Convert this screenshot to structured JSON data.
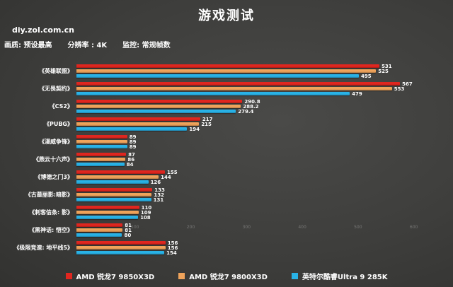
{
  "page": {
    "title": "游戏测试",
    "watermark": "diy.zol.com.cn",
    "settings": [
      "画质: 预设最高",
      "分辨率 : 4K",
      "监控: 常规帧数"
    ]
  },
  "colors": {
    "red": "#e0261f",
    "orange": "#efa35b",
    "blue": "#29b2e6",
    "background": "#3f3f3d",
    "text": "#ffffff"
  },
  "chart_data": {
    "type": "bar",
    "orientation": "horizontal",
    "title": "游戏测试",
    "xlabel": "",
    "ylabel": "",
    "xlim": [
      0,
      650
    ],
    "xticks": [
      100,
      200,
      300,
      400,
      500,
      600
    ],
    "grid": false,
    "legend_position": "bottom",
    "categories": [
      "《英雄联盟》",
      "《无畏契约》",
      "《CS2》",
      "《PUBG》",
      "《漫威争锋》",
      "《燕云十六声》",
      "《博德之门3》",
      "《古墓丽影:暗影》",
      "《刺客信条: 影》",
      "《黑神话: 悟空》",
      "《极限竞速: 地平线5》"
    ],
    "series": [
      {
        "name": "AMD 锐龙7 9850X3D",
        "color": "#e0261f",
        "values": [
          531,
          567,
          290.8,
          217,
          89,
          87,
          155,
          133,
          110,
          81,
          156
        ]
      },
      {
        "name": "AMD 锐龙7 9800X3D",
        "color": "#efa35b",
        "values": [
          525,
          553,
          288.2,
          215,
          89,
          86,
          144,
          132,
          109,
          81,
          156
        ]
      },
      {
        "name": "英特尔酷睿Ultra 9 285K",
        "color": "#29b2e6",
        "values": [
          495,
          479,
          279.4,
          194,
          89,
          84,
          126,
          131,
          108,
          80,
          154
        ]
      }
    ]
  }
}
